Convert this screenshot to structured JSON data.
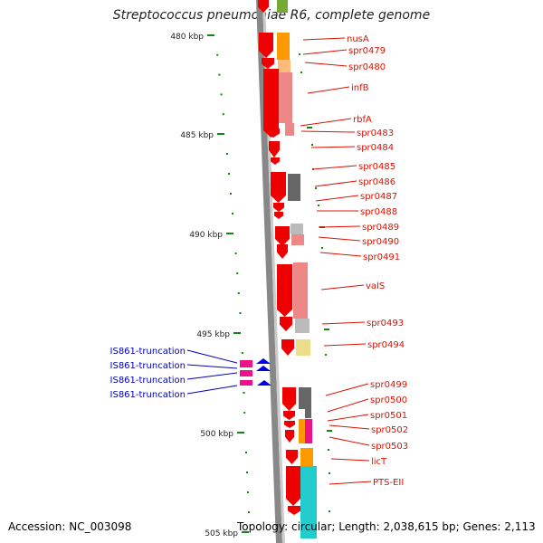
{
  "header": {
    "title": "Streptococcus pneumoniae R6, complete genome"
  },
  "footer": {
    "accession": "Accession: NC_003098",
    "topology": "Topology: circular; Length: 2,038,615 bp; Genes: 2,113"
  },
  "scale": {
    "ticks": [
      "480 kbp",
      "485 kbp",
      "490 kbp",
      "495 kbp",
      "500 kbp",
      "505 kbp"
    ]
  },
  "colors": {
    "gene_red": "#ee0000",
    "label_red": "#dd1100",
    "label_blue": "#0000bb",
    "tick_green": "#118811",
    "orange": "#ff9900",
    "salmon": "#ee8888",
    "grey": "#666666",
    "light_grey": "#bbbbbb",
    "pale_yellow": "#eedd88",
    "cyan": "#22cccc",
    "magenta": "#ee1188",
    "blue": "#0000ee",
    "backbone": "#888888"
  },
  "gene_labels": [
    "nusA",
    "spr0479",
    "spr0480",
    "infB",
    "rbfA",
    "spr0483",
    "spr0484",
    "spr0485",
    "spr0486",
    "spr0487",
    "spr0488",
    "spr0489",
    "spr0490",
    "spr0491",
    "valS",
    "spr0493",
    "spr0494",
    "spr0499",
    "spr0500",
    "spr0501",
    "spr0502",
    "spr0503",
    "licT",
    "PTS-EII"
  ],
  "is_labels": [
    "IS861-truncation",
    "IS861-truncation",
    "IS861-truncation",
    "IS861-truncation"
  ]
}
